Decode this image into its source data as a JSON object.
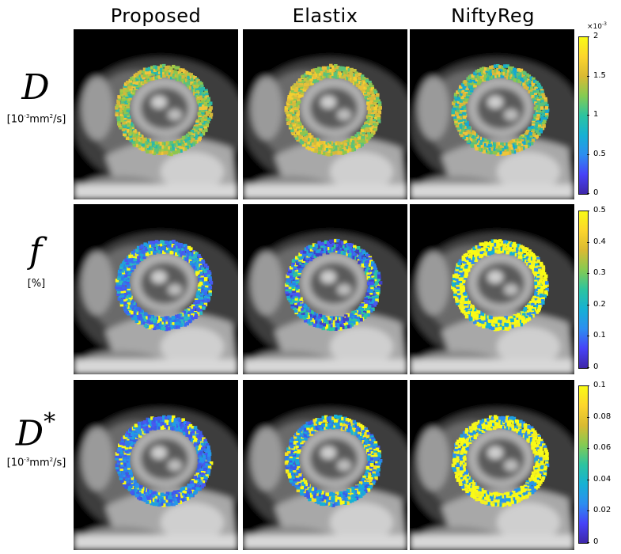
{
  "columns": [
    "Proposed",
    "Elastix",
    "NiftyReg"
  ],
  "rows": [
    {
      "symbol": "D",
      "sup": "",
      "unit_pre": "[10",
      "unit_exp1": "-3",
      "unit_mid": "mm",
      "unit_exp2": "2",
      "unit_post": "/s]"
    },
    {
      "symbol": "f",
      "sup": "",
      "unit_pre": "[%]",
      "unit_exp1": "",
      "unit_mid": "",
      "unit_exp2": "",
      "unit_post": ""
    },
    {
      "symbol": "D",
      "sup": "*",
      "unit_pre": "[10",
      "unit_exp1": "-3",
      "unit_mid": "mm",
      "unit_exp2": "2",
      "unit_post": "/s]"
    }
  ],
  "colorbars": [
    {
      "ticks": [
        "2",
        "1.5",
        "1",
        "0.5",
        "0"
      ],
      "multiplier_base": "×10",
      "multiplier_exp": "-3"
    },
    {
      "ticks": [
        "0.5",
        "0.4",
        "0.3",
        "0.2",
        "0.1",
        "0"
      ]
    },
    {
      "ticks": [
        "0.1",
        "0.08",
        "0.06",
        "0.04",
        "0.02",
        "0"
      ]
    }
  ],
  "colormap": [
    "#3e26a8",
    "#4743f8",
    "#2d8ef0",
    "#16b1d4",
    "#2cc4a0",
    "#84cb53",
    "#d9ba32",
    "#fcd52d",
    "#f9fb15"
  ],
  "ring_palettes": [
    [
      [
        "#8cc64f",
        "#d4b83a",
        "#5cc17a",
        "#2cb9a8",
        "#f0c53a",
        "#a8c845"
      ],
      [
        "#e8c03a",
        "#d9b83a",
        "#8cc64f",
        "#f4cf30",
        "#5cc17a",
        "#c8c040"
      ],
      [
        "#8cc64f",
        "#2cb9a8",
        "#d9b83a",
        "#5cc17a",
        "#16a8d0",
        "#f0c53a"
      ]
    ],
    [
      [
        "#2d7fe8",
        "#4858f0",
        "#1fa0e0",
        "#3a6af0",
        "#f9fb15",
        "#2cb9c0"
      ],
      [
        "#2d7fe8",
        "#4040c8",
        "#1fa0e0",
        "#f9fb15",
        "#2cc4a0",
        "#4858f0"
      ],
      [
        "#f9fb15",
        "#f9fb15",
        "#f4f020",
        "#f9fb15",
        "#2d8ef0",
        "#16b1d4"
      ]
    ],
    [
      [
        "#2d7fe8",
        "#3a5ae8",
        "#f9fb15",
        "#1fa0e0",
        "#4858f0",
        "#2d8ef0"
      ],
      [
        "#2d7fe8",
        "#f9fb15",
        "#3a5ae8",
        "#1fa0e0",
        "#f4e020",
        "#16b1d4"
      ],
      [
        "#f9fb15",
        "#f9fb15",
        "#f4f020",
        "#2d8ef0",
        "#f9fb15",
        "#1fa0e0"
      ]
    ]
  ]
}
